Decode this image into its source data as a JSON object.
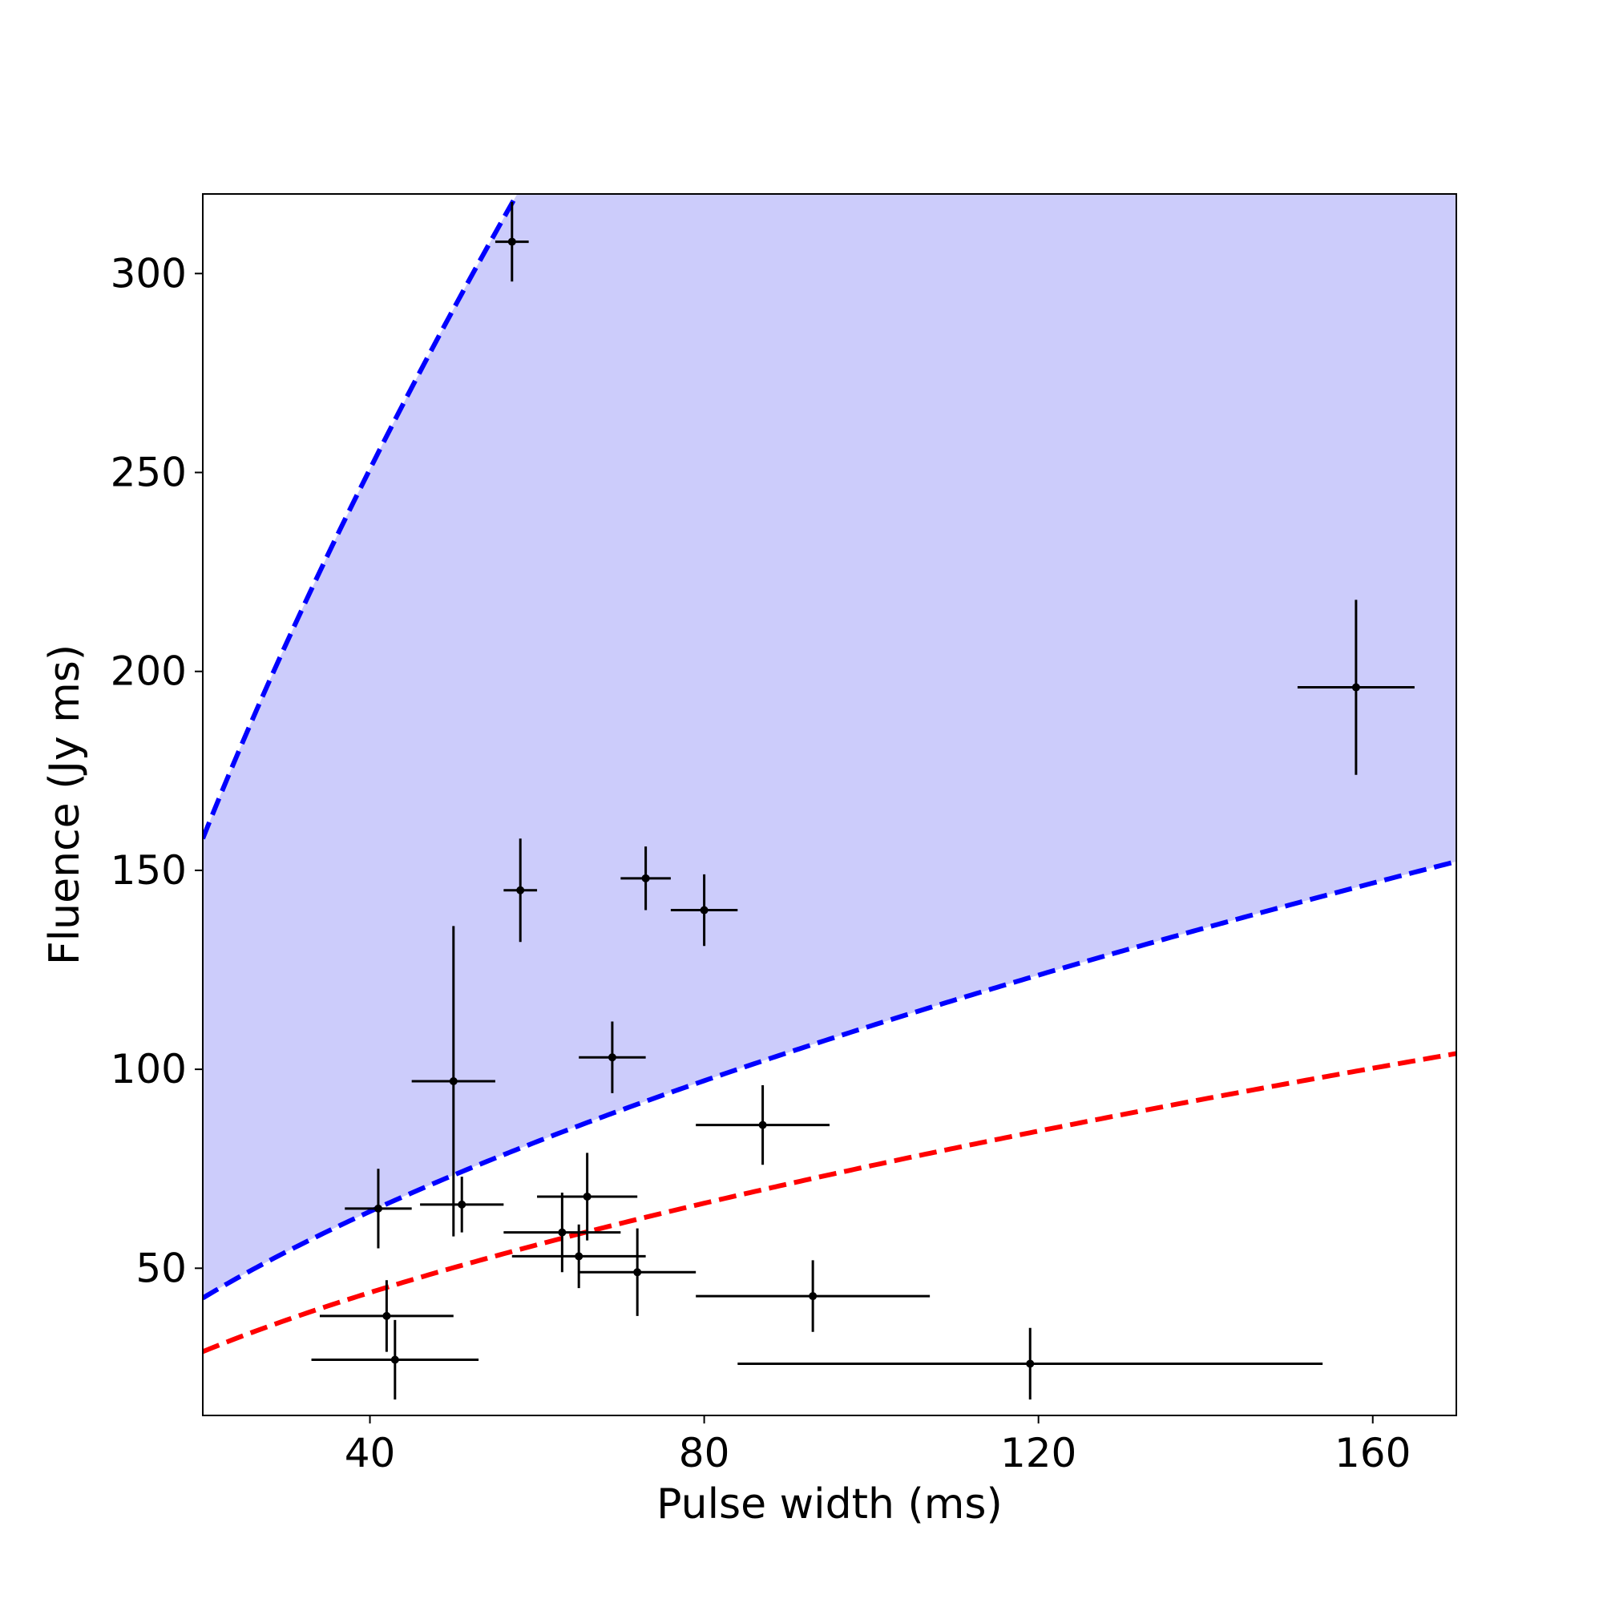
{
  "chart_data": {
    "type": "scatter",
    "title": "",
    "xlabel": "Pulse width (ms)",
    "ylabel": "Fluence (Jy ms)",
    "xlim": [
      20,
      170
    ],
    "ylim": [
      13,
      320
    ],
    "xticks": [
      40,
      80,
      120,
      160
    ],
    "yticks": [
      50,
      100,
      150,
      200,
      250,
      300
    ],
    "grid": false,
    "legend": null,
    "band_color": "#ccccfb",
    "points": [
      {
        "x": 57,
        "y": 308,
        "xerr": 2,
        "yerr": 10
      },
      {
        "x": 58,
        "y": 145,
        "xerr": 2,
        "yerr": 13
      },
      {
        "x": 73,
        "y": 148,
        "xerr": 3,
        "yerr": 8
      },
      {
        "x": 80,
        "y": 140,
        "xerr": 4,
        "yerr": 9
      },
      {
        "x": 158,
        "y": 196,
        "xerr": 7,
        "yerr": 22
      },
      {
        "x": 69,
        "y": 103,
        "xerr": 4,
        "yerr": 9
      },
      {
        "x": 50,
        "y": 97,
        "xerr": 5,
        "yerr": 39
      },
      {
        "x": 87,
        "y": 86,
        "xerr": 8,
        "yerr": 10
      },
      {
        "x": 41,
        "y": 65,
        "xerr": 4,
        "yerr": 10
      },
      {
        "x": 51,
        "y": 66,
        "xerr": 5,
        "yerr": 7
      },
      {
        "x": 66,
        "y": 68,
        "xerr": 6,
        "yerr": 11
      },
      {
        "x": 63,
        "y": 59,
        "xerr": 7,
        "yerr": 10
      },
      {
        "x": 65,
        "y": 53,
        "xerr": 8,
        "yerr": 8
      },
      {
        "x": 72,
        "y": 49,
        "xerr": 7,
        "yerr": 11
      },
      {
        "x": 93,
        "y": 43,
        "xerr": 14,
        "yerr": 9
      },
      {
        "x": 42,
        "y": 38,
        "xerr": 8,
        "yerr": 9
      },
      {
        "x": 43,
        "y": 27,
        "xerr": 10,
        "yerr": 10
      },
      {
        "x": 119,
        "y": 26,
        "xerr": 35,
        "yerr": 9
      }
    ],
    "curves": [
      {
        "id": "upper",
        "color": "#0000ff",
        "style": "dashed",
        "coef": 21.42,
        "exp": 0.667
      },
      {
        "id": "lower",
        "color": "#0000ff",
        "style": "dashed",
        "coef": 7.13,
        "exp": 0.596
      },
      {
        "id": "threshold",
        "color": "#ff0000",
        "style": "dashed",
        "coef": 4.87,
        "exp": 0.596
      }
    ],
    "shaded_region": {
      "between": [
        "lower",
        "upper"
      ],
      "color": "#ccccfb"
    }
  }
}
